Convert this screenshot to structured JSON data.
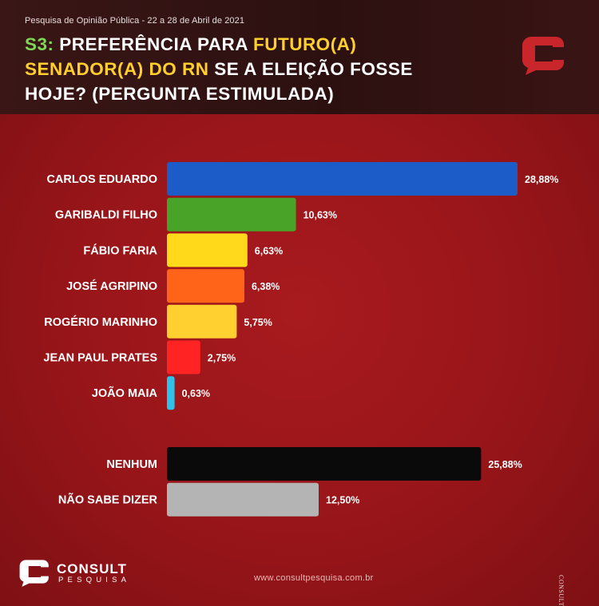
{
  "header": {
    "subtitle": "Pesquisa de Opinião Pública - 22 a 28 de Abril de 2021",
    "title_code": "S3:",
    "title_part1": " PREFERÊNCIA PARA ",
    "title_future": "FUTURO(A)",
    "title_senator": "SENADOR(A) DO RN",
    "title_part2": " SE A ELEIÇÃO FOSSE HOJE? (PERGUNTA ESTIMULADA)"
  },
  "chart_data": {
    "type": "bar",
    "orientation": "horizontal",
    "title": "S3: PREFERÊNCIA PARA FUTURO(A) SENADOR(A) DO RN SE A ELEIÇÃO FOSSE HOJE? (PERGUNTA ESTIMULADA)",
    "value_unit": "%",
    "xlim": [
      0,
      30
    ],
    "groups": [
      {
        "name": "candidates",
        "bars": [
          {
            "label": "CARLOS EDUARDO",
            "value": 28.88,
            "value_label": "28,88%",
            "color": "#1c5cc8"
          },
          {
            "label": "GARIBALDI FILHO",
            "value": 10.63,
            "value_label": "10,63%",
            "color": "#4aa329"
          },
          {
            "label": "FÁBIO FARIA",
            "value": 6.63,
            "value_label": "6,63%",
            "color": "#ffd91a"
          },
          {
            "label": "JOSÉ AGRIPINO",
            "value": 6.38,
            "value_label": "6,38%",
            "color": "#ff6419"
          },
          {
            "label": "ROGÉRIO MARINHO",
            "value": 5.75,
            "value_label": "5,75%",
            "color": "#ffd030"
          },
          {
            "label": "JEAN PAUL PRATES",
            "value": 2.75,
            "value_label": "2,75%",
            "color": "#ff2323"
          },
          {
            "label": "JOÃO MAIA",
            "value": 0.63,
            "value_label": "0,63%",
            "color": "#2ec1ea"
          }
        ]
      },
      {
        "name": "others",
        "bars": [
          {
            "label": "NENHUM",
            "value": 25.88,
            "value_label": "25,88%",
            "color": "#0a0a0a"
          },
          {
            "label": "NÃO SABE DIZER",
            "value": 12.5,
            "value_label": "12,50%",
            "color": "#b4b4b4"
          }
        ]
      }
    ]
  },
  "footer": {
    "brand": "CONSULT",
    "brand_sub": "PESQUISA",
    "website": "www.consultpesquisa.com.br",
    "watermark": "CONSULT"
  },
  "colors": {
    "accent_red": "#c8262b",
    "title_green": "#7ed957",
    "title_yellow": "#ffcf2e"
  }
}
